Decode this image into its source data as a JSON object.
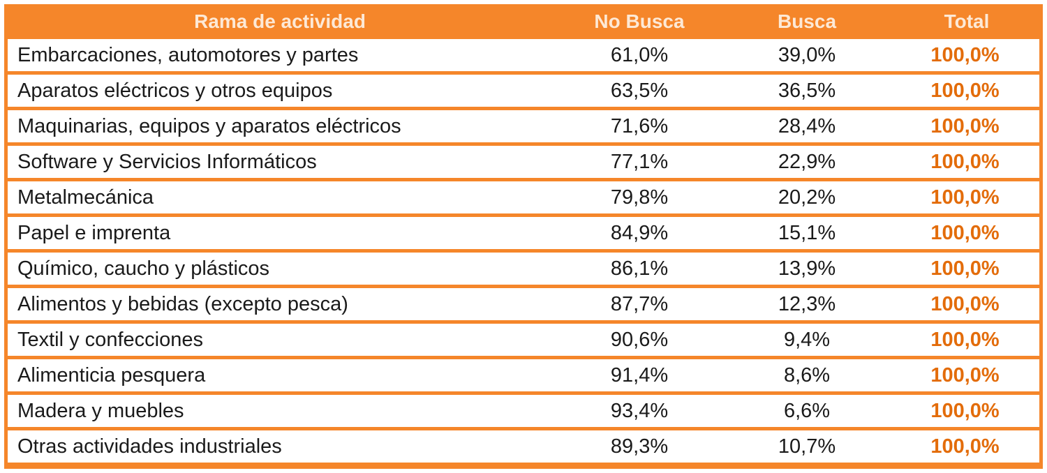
{
  "chart_data": {
    "type": "table",
    "columns": [
      "Rama de actividad",
      "No Busca",
      "Busca",
      "Total"
    ],
    "rows": [
      [
        "Embarcaciones, automotores y partes",
        "61,0%",
        "39,0%",
        "100,0%"
      ],
      [
        "Aparatos eléctricos y otros equipos",
        "63,5%",
        "36,5%",
        "100,0%"
      ],
      [
        "Maquinarias, equipos y aparatos eléctricos",
        "71,6%",
        "28,4%",
        "100,0%"
      ],
      [
        "Software y Servicios Informáticos",
        "77,1%",
        "22,9%",
        "100,0%"
      ],
      [
        "Metalmecánica",
        "79,8%",
        "20,2%",
        "100,0%"
      ],
      [
        "Papel e imprenta",
        "84,9%",
        "15,1%",
        "100,0%"
      ],
      [
        "Químico, caucho y plásticos",
        "86,1%",
        "13,9%",
        "100,0%"
      ],
      [
        "Alimentos y bebidas (excepto pesca)",
        "87,7%",
        "12,3%",
        "100,0%"
      ],
      [
        "Textil y confecciones",
        "90,6%",
        "9,4%",
        "100,0%"
      ],
      [
        "Alimenticia pesquera",
        "91,4%",
        "8,6%",
        "100,0%"
      ],
      [
        "Madera y muebles",
        "93,4%",
        "6,6%",
        "100,0%"
      ],
      [
        "Otras actividades industriales",
        "89,3%",
        "10,7%",
        "100,0%"
      ]
    ],
    "colors": {
      "header_bg": "#f5862a",
      "header_text": "#fde9d6",
      "total_text": "#e36c0a"
    }
  }
}
